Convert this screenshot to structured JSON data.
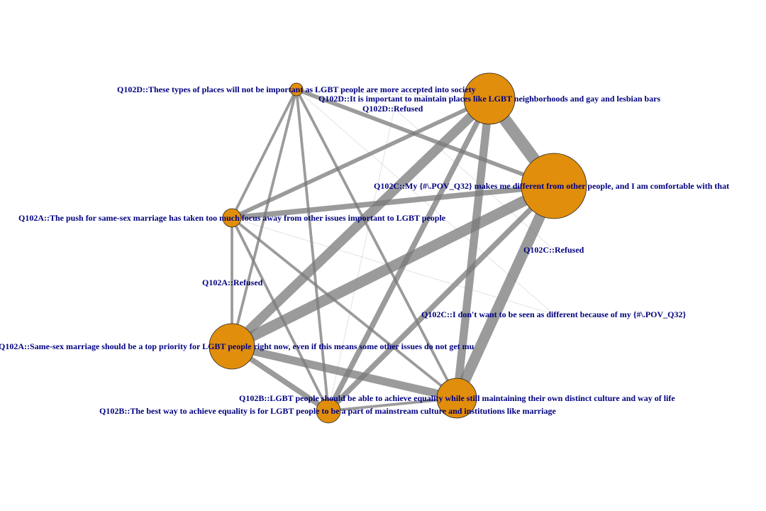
{
  "colors": {
    "node_fill": "#e08e0b",
    "node_stroke": "#222222",
    "edge": "#7a7a7a",
    "label": "#000080"
  },
  "nodes": [
    {
      "id": "q102d_not_important",
      "label": "Q102D::These types of places will not be important as LGBT people are more accepted into society",
      "weight": 1
    },
    {
      "id": "q102d_important",
      "label": "Q102D::It is important to maintain places like LGBT neighborhoods and gay and lesbian bars",
      "weight": 5
    },
    {
      "id": "q102d_refused",
      "label": "Q102D::Refused",
      "weight": 0
    },
    {
      "id": "q102c_different",
      "label": "Q102C::My {#\\.POV_Q32}  makes me  different from other people, and I am comfortable with that",
      "weight": 8
    },
    {
      "id": "q102a_push",
      "label": "Q102A::The push for same-sex marriage has taken too much focus away from other issues important to LGBT people",
      "weight": 2
    },
    {
      "id": "q102c_refused",
      "label": "Q102C::Refused",
      "weight": 0
    },
    {
      "id": "q102a_refused",
      "label": "Q102A::Refused",
      "weight": 0
    },
    {
      "id": "q102c_dont_want",
      "label": "Q102C::I don't want to be seen as different because of my {#\\.POV_Q32}",
      "weight": 0
    },
    {
      "id": "q102a_priority",
      "label": "Q102A::Same-sex marriage should be a top priority for LGBT people right now, even if this means some other issues do not get mu",
      "weight": 5
    },
    {
      "id": "q102b_distinct",
      "label": "Q102B::LGBT people should be able to achieve equality while still maintaining their own distinct culture and way of life",
      "weight": 4
    },
    {
      "id": "q102b_mainstream",
      "label": "Q102B::The best way to achieve equality is for LGBT people to be a part of  mainstream culture and institutions like marriage",
      "weight": 2
    }
  ],
  "edges": [
    {
      "source": "q102c_different",
      "target": "q102d_important",
      "weight": 9
    },
    {
      "source": "q102c_different",
      "target": "q102b_distinct",
      "weight": 8
    },
    {
      "source": "q102c_different",
      "target": "q102a_priority",
      "weight": 8
    },
    {
      "source": "q102d_important",
      "target": "q102a_priority",
      "weight": 7
    },
    {
      "source": "q102d_important",
      "target": "q102b_distinct",
      "weight": 6
    },
    {
      "source": "q102a_priority",
      "target": "q102b_distinct",
      "weight": 6
    },
    {
      "source": "q102c_different",
      "target": "q102b_mainstream",
      "weight": 4
    },
    {
      "source": "q102d_important",
      "target": "q102b_mainstream",
      "weight": 4
    },
    {
      "source": "q102a_priority",
      "target": "q102b_mainstream",
      "weight": 4
    },
    {
      "source": "q102c_different",
      "target": "q102a_push",
      "weight": 4
    },
    {
      "source": "q102d_important",
      "target": "q102a_push",
      "weight": 3
    },
    {
      "source": "q102d_not_important",
      "target": "q102c_different",
      "weight": 3
    },
    {
      "source": "q102d_not_important",
      "target": "q102b_distinct",
      "weight": 2
    },
    {
      "source": "q102d_not_important",
      "target": "q102a_priority",
      "weight": 2
    },
    {
      "source": "q102d_not_important",
      "target": "q102b_mainstream",
      "weight": 2
    },
    {
      "source": "q102d_not_important",
      "target": "q102a_push",
      "weight": 2
    },
    {
      "source": "q102a_push",
      "target": "q102b_distinct",
      "weight": 2
    },
    {
      "source": "q102a_push",
      "target": "q102b_mainstream",
      "weight": 2
    },
    {
      "source": "q102a_push",
      "target": "q102a_priority",
      "weight": 2
    },
    {
      "source": "q102b_distinct",
      "target": "q102b_mainstream",
      "weight": 2
    },
    {
      "source": "q102d_not_important",
      "target": "q102d_important",
      "weight": 0.5
    },
    {
      "source": "q102d_not_important",
      "target": "q102c_dont_want",
      "weight": 0.3
    },
    {
      "source": "q102d_refused",
      "target": "q102b_mainstream",
      "weight": 0.3
    },
    {
      "source": "q102d_refused",
      "target": "q102c_refused",
      "weight": 0.3
    },
    {
      "source": "q102a_push",
      "target": "q102c_dont_want",
      "weight": 0.3
    }
  ]
}
